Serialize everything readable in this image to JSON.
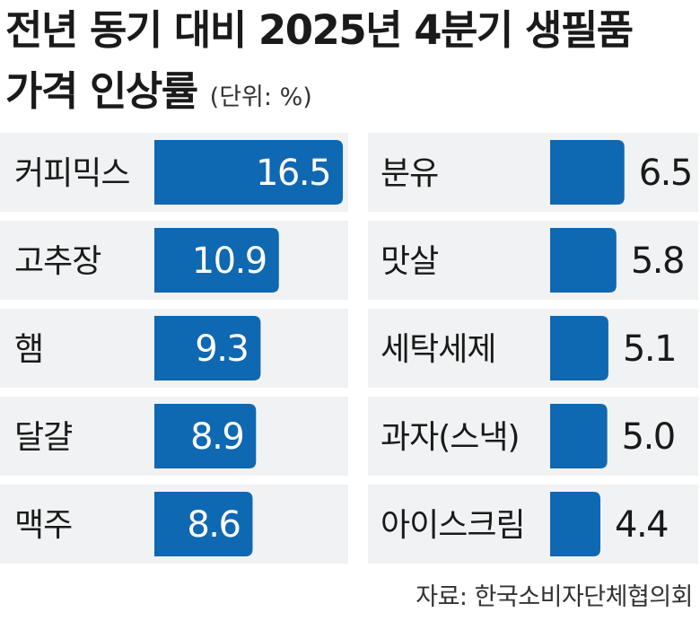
{
  "title_line1": "전년 동기 대비 2025년 4분기 생필품",
  "title_line2": "가격 인상률",
  "unit": "(단위: %)",
  "source": "자료: 한국소비자단체협의회",
  "colors": {
    "bar": "#0f68b2",
    "row_bg": "#f1f2f3",
    "label_text_inside": "#ffffff",
    "label_text_outside": "#1a1a1a"
  },
  "chart_data": {
    "type": "bar",
    "orientation": "horizontal",
    "columns": [
      {
        "categories": [
          "커피믹스",
          "고추장",
          "햄",
          "달걀",
          "맥주"
        ],
        "values": [
          16.5,
          10.9,
          9.3,
          8.9,
          8.6
        ],
        "value_labels": [
          "16.5",
          "10.9",
          "9.3",
          "8.9",
          "8.6"
        ]
      },
      {
        "categories": [
          "분유",
          "맛살",
          "세탁세제",
          "과자(스낵)",
          "아이스크림"
        ],
        "values": [
          6.5,
          5.8,
          5.1,
          5.0,
          4.4
        ],
        "value_labels": [
          "6.5",
          "5.8",
          "5.1",
          "5.0",
          "4.4"
        ]
      }
    ]
  }
}
